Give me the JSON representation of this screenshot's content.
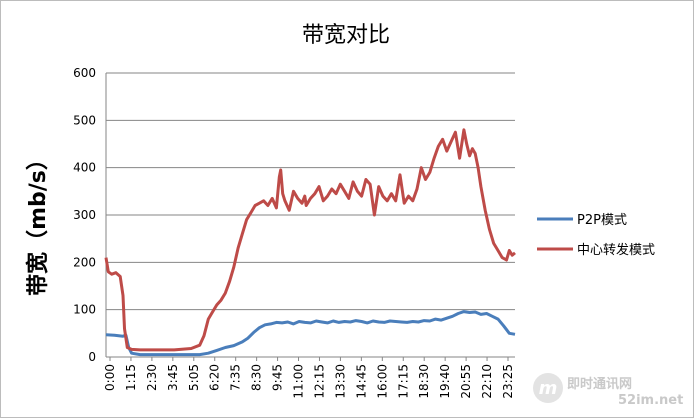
{
  "chart_data": {
    "type": "line",
    "title": "带宽对比",
    "ylabel": "带宽（mb/s）",
    "xlabel": "",
    "ylim": [
      0,
      600
    ],
    "yticks": [
      "0",
      "100",
      "200",
      "300",
      "400",
      "500",
      "600"
    ],
    "xlim": [
      0,
      1440
    ],
    "xticks": [
      "0:00",
      "1:15",
      "2:30",
      "3:45",
      "5:05",
      "6:20",
      "7:35",
      "8:30",
      "9:45",
      "11:00",
      "12:15",
      "13:30",
      "14:45",
      "16:00",
      "17:15",
      "18:30",
      "19:40",
      "20:55",
      "22:10",
      "23:25"
    ],
    "grid": true,
    "legend_position": "right",
    "series": [
      {
        "name": "P2P模式",
        "color": "#4a7ebb",
        "x": [
          0,
          30,
          60,
          70,
          80,
          90,
          120,
          180,
          240,
          300,
          330,
          360,
          390,
          420,
          450,
          480,
          500,
          520,
          540,
          560,
          580,
          600,
          620,
          640,
          660,
          680,
          700,
          720,
          740,
          760,
          780,
          800,
          820,
          840,
          860,
          880,
          900,
          920,
          940,
          960,
          980,
          1000,
          1020,
          1040,
          1060,
          1080,
          1100,
          1120,
          1140,
          1160,
          1180,
          1200,
          1220,
          1240,
          1260,
          1280,
          1300,
          1320,
          1340,
          1360,
          1380,
          1400,
          1420,
          1440
        ],
        "values": [
          47,
          46,
          44,
          46,
          20,
          8,
          5,
          5,
          5,
          5,
          5,
          8,
          14,
          20,
          24,
          32,
          40,
          52,
          62,
          68,
          70,
          73,
          72,
          74,
          70,
          75,
          73,
          72,
          76,
          74,
          72,
          76,
          73,
          75,
          74,
          77,
          75,
          72,
          76,
          74,
          73,
          76,
          75,
          74,
          73,
          75,
          74,
          77,
          76,
          80,
          78,
          82,
          86,
          92,
          96,
          94,
          95,
          90,
          92,
          86,
          80,
          66,
          50,
          48
        ]
      },
      {
        "name": "中心转发模式",
        "color": "#be4b48",
        "x": [
          0,
          8,
          20,
          35,
          50,
          60,
          65,
          75,
          90,
          120,
          180,
          240,
          300,
          330,
          345,
          360,
          375,
          390,
          405,
          420,
          435,
          450,
          465,
          480,
          495,
          510,
          525,
          540,
          555,
          570,
          585,
          600,
          610,
          615,
          622,
          630,
          645,
          660,
          675,
          690,
          700,
          705,
          720,
          735,
          750,
          765,
          780,
          795,
          810,
          825,
          840,
          855,
          870,
          885,
          900,
          915,
          930,
          945,
          960,
          975,
          990,
          1005,
          1020,
          1035,
          1050,
          1065,
          1080,
          1095,
          1110,
          1125,
          1140,
          1155,
          1170,
          1185,
          1200,
          1215,
          1230,
          1245,
          1260,
          1270,
          1280,
          1290,
          1300,
          1310,
          1320,
          1335,
          1350,
          1365,
          1380,
          1395,
          1410,
          1420,
          1430,
          1440
        ],
        "values": [
          210,
          180,
          175,
          178,
          170,
          130,
          60,
          20,
          16,
          15,
          15,
          15,
          18,
          25,
          45,
          80,
          95,
          110,
          120,
          135,
          160,
          190,
          230,
          260,
          290,
          305,
          320,
          325,
          330,
          320,
          335,
          315,
          380,
          395,
          345,
          330,
          310,
          350,
          335,
          325,
          340,
          320,
          335,
          345,
          360,
          330,
          340,
          355,
          345,
          365,
          350,
          335,
          370,
          350,
          340,
          375,
          365,
          300,
          360,
          340,
          330,
          345,
          330,
          385,
          325,
          340,
          330,
          355,
          400,
          375,
          390,
          420,
          445,
          460,
          435,
          455,
          475,
          420,
          480,
          450,
          425,
          440,
          430,
          400,
          360,
          310,
          270,
          240,
          225,
          210,
          205,
          225,
          215,
          220
        ]
      }
    ]
  },
  "watermark": {
    "brand": "即时通讯网",
    "url": "52im.net"
  },
  "colors": {
    "gridline": "#868686",
    "axis": "#868686",
    "watermark": "#c9c9c9"
  }
}
